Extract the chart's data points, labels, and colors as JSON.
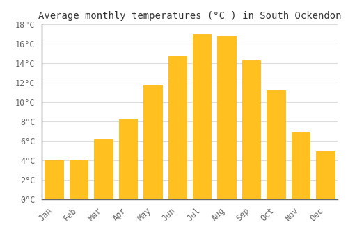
{
  "title": "Average monthly temperatures (°C ) in South Ockendon",
  "months": [
    "Jan",
    "Feb",
    "Mar",
    "Apr",
    "May",
    "Jun",
    "Jul",
    "Aug",
    "Sep",
    "Oct",
    "Nov",
    "Dec"
  ],
  "temperatures": [
    4.0,
    4.1,
    6.2,
    8.3,
    11.8,
    14.8,
    17.0,
    16.8,
    14.3,
    11.2,
    6.9,
    4.9
  ],
  "bar_color_face": "#FFC020",
  "bar_color_edge": "#FFB000",
  "ylim": [
    0,
    18
  ],
  "yticks": [
    0,
    2,
    4,
    6,
    8,
    10,
    12,
    14,
    16,
    18
  ],
  "background_color": "#FFFFFF",
  "plot_bg_color": "#FFFFFF",
  "grid_color": "#DDDDDD",
  "title_fontsize": 10,
  "tick_fontsize": 8.5,
  "title_color": "#333333",
  "tick_color": "#666666",
  "font_family": "monospace",
  "bar_width": 0.75
}
